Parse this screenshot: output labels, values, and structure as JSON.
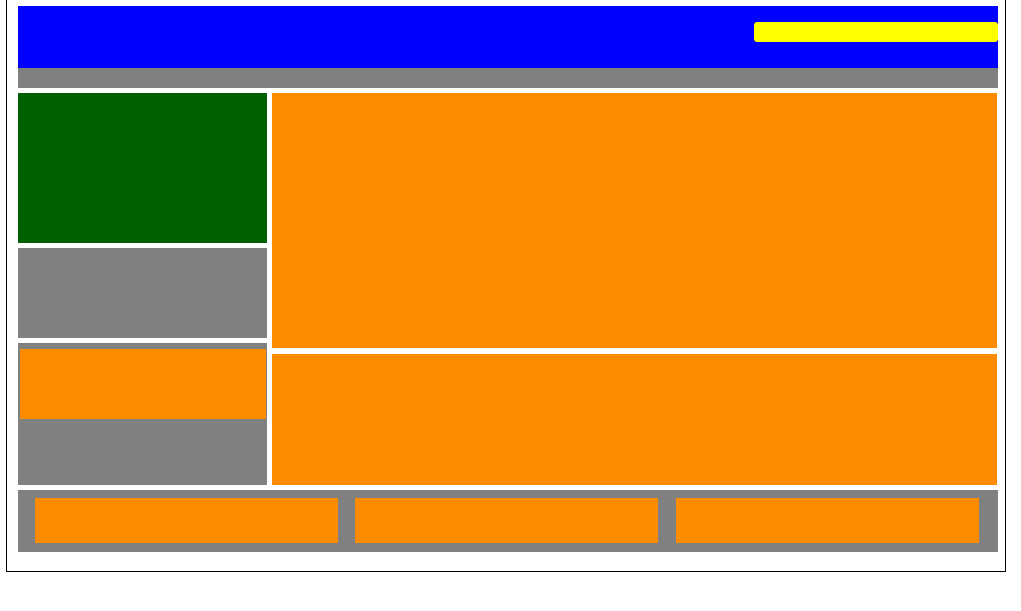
{
  "colors": {
    "header": "#0000ff",
    "search": "#ffff00",
    "neutral": "#808080",
    "feature": "#006000",
    "accent": "#ff8c00",
    "frame_border": "#000000",
    "background": "#ffffff"
  }
}
